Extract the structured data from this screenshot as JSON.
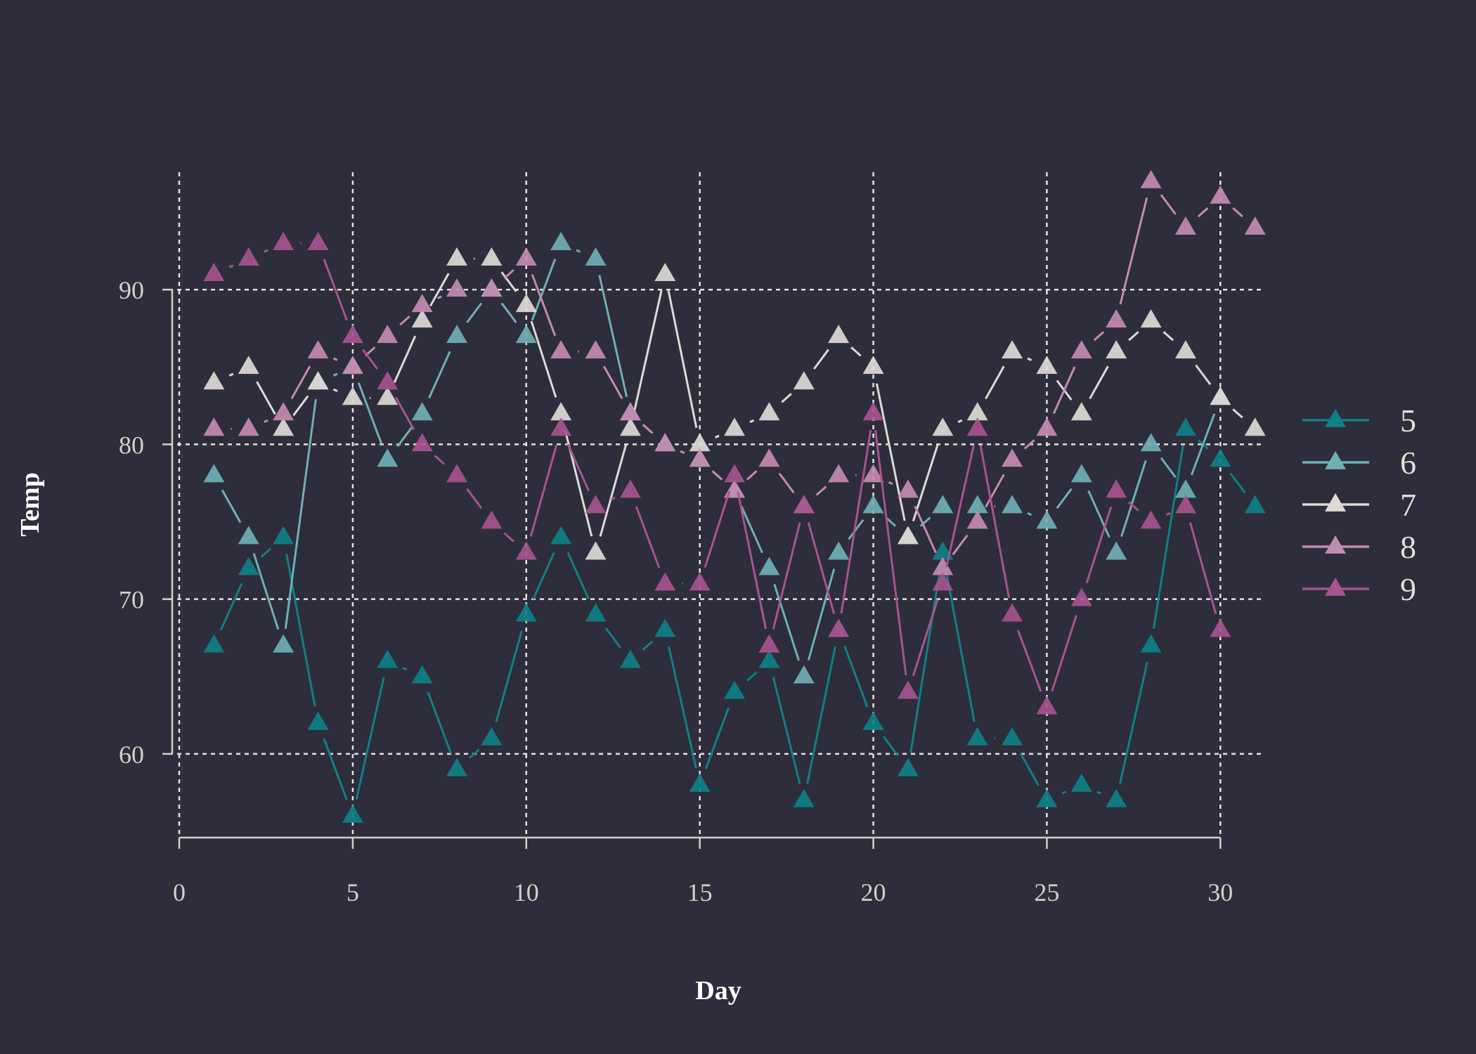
{
  "chart_data": {
    "type": "line",
    "xlabel": "Day",
    "ylabel": "Temp",
    "xlim": [
      0,
      32.1
    ],
    "ylim": [
      54,
      98.5
    ],
    "xticks": [
      0,
      5,
      10,
      15,
      20,
      25,
      30
    ],
    "yticks": [
      60,
      70,
      80,
      90
    ],
    "grid": true,
    "legend_position": "right",
    "marker": "triangle",
    "x": [
      1,
      2,
      3,
      4,
      5,
      6,
      7,
      8,
      9,
      10,
      11,
      12,
      13,
      14,
      15,
      16,
      17,
      18,
      19,
      20,
      21,
      22,
      23,
      24,
      25,
      26,
      27,
      28,
      29,
      30,
      31
    ],
    "series": [
      {
        "name": "5",
        "color": "#0f8087",
        "x": [
          1,
          2,
          3,
          4,
          5,
          6,
          7,
          8,
          9,
          10,
          11,
          12,
          13,
          14,
          15,
          16,
          17,
          18,
          19,
          20,
          21,
          22,
          23,
          24,
          25,
          26,
          27,
          28,
          29,
          30,
          31
        ],
        "values": [
          67,
          72,
          74,
          62,
          56,
          66,
          65,
          59,
          61,
          69,
          74,
          69,
          66,
          68,
          58,
          64,
          66,
          57,
          68,
          62,
          59,
          73,
          61,
          61,
          57,
          58,
          57,
          67,
          81,
          79,
          76
        ]
      },
      {
        "name": "6",
        "color": "#6fb0b5",
        "x": [
          1,
          2,
          3,
          4,
          5,
          6,
          7,
          8,
          9,
          10,
          11,
          12,
          13,
          14,
          15,
          16,
          17,
          18,
          19,
          20,
          21,
          22,
          23,
          24,
          25,
          26,
          27,
          28,
          29,
          30
        ],
        "values": [
          78,
          74,
          67,
          84,
          85,
          79,
          82,
          87,
          90,
          87,
          93,
          92,
          82,
          80,
          79,
          77,
          72,
          65,
          73,
          76,
          74,
          76,
          76,
          76,
          75,
          78,
          73,
          80,
          77,
          83
        ]
      },
      {
        "name": "7",
        "color": "#dedad6",
        "x": [
          1,
          2,
          3,
          4,
          5,
          6,
          7,
          8,
          9,
          10,
          11,
          12,
          13,
          14,
          15,
          16,
          17,
          18,
          19,
          20,
          21,
          22,
          23,
          24,
          25,
          26,
          27,
          28,
          29,
          30,
          31
        ],
        "values": [
          84,
          85,
          81,
          84,
          83,
          83,
          88,
          92,
          92,
          89,
          82,
          73,
          81,
          91,
          80,
          81,
          82,
          84,
          87,
          85,
          74,
          81,
          82,
          86,
          85,
          82,
          86,
          88,
          86,
          83,
          81
        ]
      },
      {
        "name": "8",
        "color": "#c48bb1",
        "x": [
          1,
          2,
          3,
          4,
          5,
          6,
          7,
          8,
          9,
          10,
          11,
          12,
          13,
          14,
          15,
          16,
          17,
          18,
          19,
          20,
          21,
          22,
          23,
          24,
          25,
          26,
          27,
          28,
          29,
          30,
          31
        ],
        "values": [
          81,
          81,
          82,
          86,
          85,
          87,
          89,
          90,
          90,
          92,
          86,
          86,
          82,
          80,
          79,
          77,
          79,
          76,
          78,
          78,
          77,
          72,
          75,
          79,
          81,
          86,
          88,
          97,
          94,
          96,
          94
        ]
      },
      {
        "name": "9",
        "color": "#a7548f",
        "x": [
          1,
          2,
          3,
          4,
          5,
          6,
          7,
          8,
          9,
          10,
          11,
          12,
          13,
          14,
          15,
          16,
          17,
          18,
          19,
          20,
          21,
          22,
          23,
          24,
          25,
          26,
          27,
          28,
          29,
          30
        ],
        "values": [
          91,
          92,
          93,
          93,
          87,
          84,
          80,
          78,
          75,
          73,
          81,
          76,
          77,
          71,
          71,
          78,
          67,
          76,
          68,
          82,
          64,
          71,
          81,
          69,
          63,
          70,
          77,
          75,
          76,
          68
        ]
      }
    ]
  }
}
